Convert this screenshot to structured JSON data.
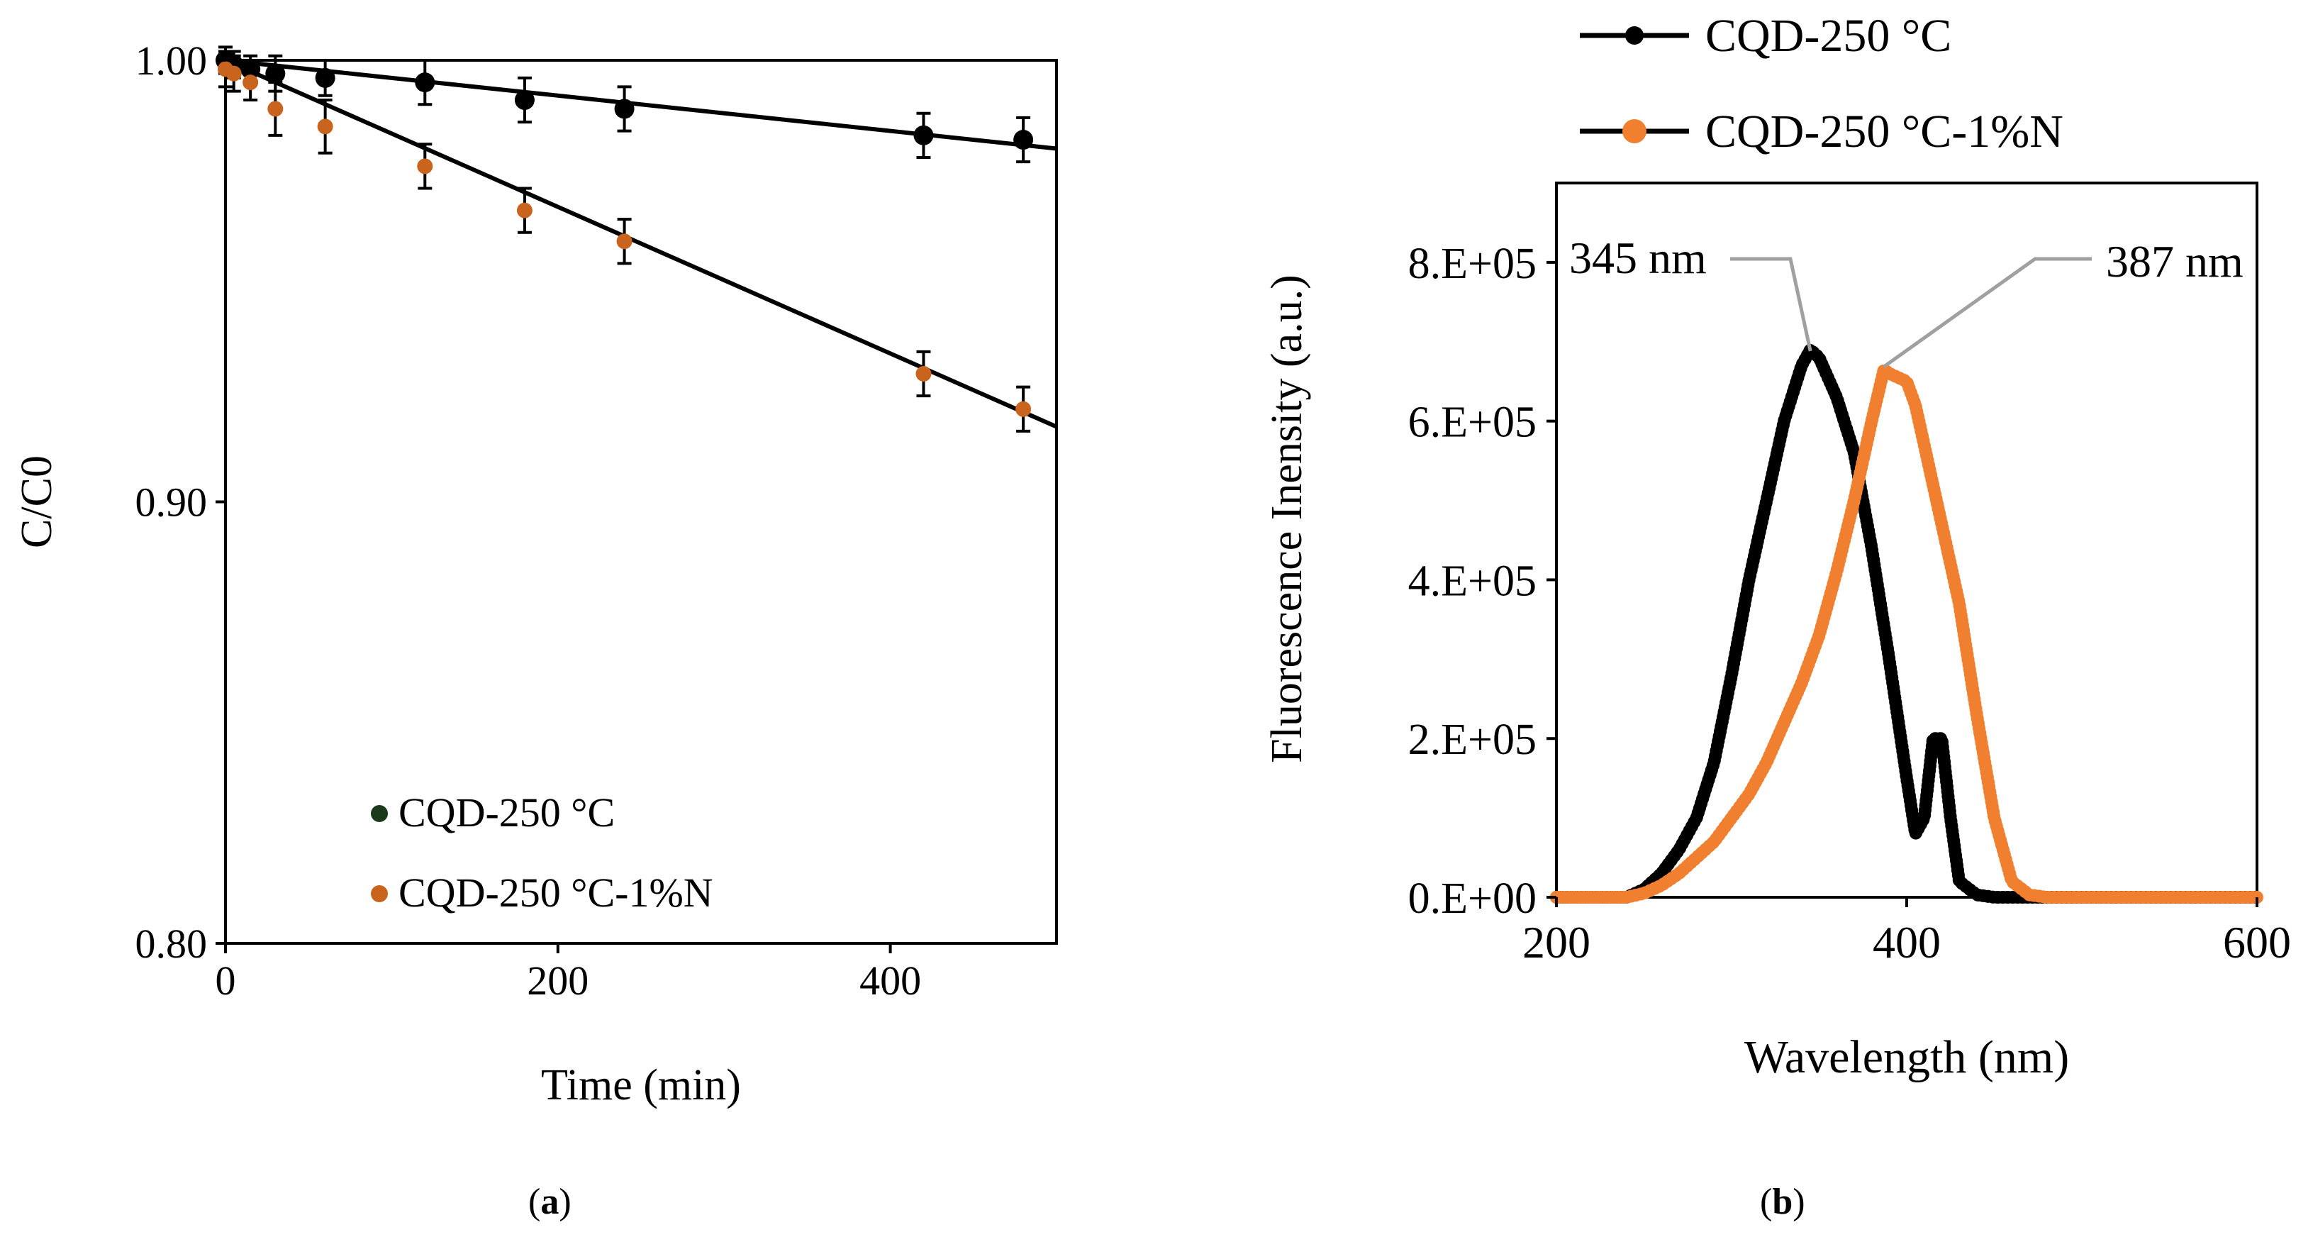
{
  "chart_data": [
    {
      "type": "scatter",
      "panel_label": "a",
      "title": "",
      "xlabel": "Time (min)",
      "ylabel": "C/C0",
      "xlim": [
        0,
        500
      ],
      "ylim": [
        0.8,
        1.0
      ],
      "xticks": [
        0,
        200,
        400
      ],
      "yticks": [
        0.8,
        0.9,
        1.0
      ],
      "ytick_labels": [
        "0.80",
        "0.90",
        "1.00"
      ],
      "legend_position": "bottom-left",
      "series": [
        {
          "name": "CQD-250 °C",
          "color": "#000000",
          "legend_marker_color": "#1a3a1a",
          "x": [
            0,
            5,
            15,
            30,
            60,
            120,
            180,
            240,
            420,
            480
          ],
          "y": [
            1.0,
            0.999,
            0.998,
            0.997,
            0.996,
            0.995,
            0.991,
            0.989,
            0.983,
            0.982
          ],
          "error": [
            0.003,
            0.003,
            0.003,
            0.004,
            0.004,
            0.005,
            0.005,
            0.005,
            0.005,
            0.005
          ],
          "trendline": {
            "x": [
              0,
              500
            ],
            "y": [
              1.0,
              0.98
            ]
          }
        },
        {
          "name": "CQD-250 °C-1%N",
          "color": "#c8641e",
          "legend_marker_color": "#c8641e",
          "x": [
            0,
            5,
            15,
            30,
            60,
            120,
            180,
            240,
            420,
            480
          ],
          "y": [
            0.998,
            0.997,
            0.995,
            0.989,
            0.985,
            0.976,
            0.966,
            0.959,
            0.929,
            0.921
          ],
          "error": [
            0.004,
            0.004,
            0.004,
            0.006,
            0.006,
            0.005,
            0.005,
            0.005,
            0.005,
            0.005
          ],
          "trendline": {
            "x": [
              0,
              500
            ],
            "y": [
              1.0,
              0.917
            ]
          }
        }
      ]
    },
    {
      "type": "line",
      "panel_label": "b",
      "title": "",
      "xlabel": "Wavelength (nm)",
      "ylabel": "Fluorescence Inensity (a.u.)",
      "xlim": [
        200,
        600
      ],
      "ylim": [
        0,
        900000
      ],
      "xticks": [
        200,
        400,
        600
      ],
      "yticks": [
        0,
        200000,
        400000,
        600000,
        800000
      ],
      "ytick_labels": [
        "0.E+00",
        "2.E+05",
        "4.E+05",
        "6.E+05",
        "8.E+05"
      ],
      "legend_position": "top (above plot)",
      "annotations": [
        {
          "text": "345 nm",
          "x": 345,
          "y": 690000
        },
        {
          "text": "387 nm",
          "x": 387,
          "y": 665000
        }
      ],
      "series": [
        {
          "name": "CQD-250 °C",
          "color": "#000000",
          "x": [
            200,
            240,
            250,
            260,
            270,
            280,
            290,
            300,
            310,
            320,
            330,
            340,
            345,
            350,
            360,
            370,
            380,
            390,
            400,
            405,
            410,
            415,
            420,
            425,
            430,
            440,
            450,
            500,
            600
          ],
          "y": [
            0,
            0,
            10000,
            30000,
            60000,
            100000,
            170000,
            280000,
            400000,
            500000,
            600000,
            670000,
            690000,
            680000,
            630000,
            560000,
            440000,
            300000,
            150000,
            80000,
            100000,
            200000,
            200000,
            100000,
            20000,
            3000,
            0,
            0,
            0
          ]
        },
        {
          "name": "CQD-250 °C-1%N",
          "color": "#f07f2f",
          "x": [
            200,
            240,
            250,
            260,
            270,
            280,
            290,
            300,
            310,
            320,
            330,
            340,
            350,
            360,
            370,
            380,
            387,
            390,
            395,
            400,
            405,
            410,
            420,
            430,
            440,
            450,
            460,
            470,
            480,
            500,
            600
          ],
          "y": [
            0,
            0,
            5000,
            15000,
            30000,
            50000,
            70000,
            100000,
            130000,
            170000,
            220000,
            270000,
            330000,
            410000,
            500000,
            600000,
            665000,
            660000,
            655000,
            650000,
            620000,
            570000,
            470000,
            370000,
            230000,
            100000,
            20000,
            3000,
            0,
            0,
            0
          ]
        }
      ]
    }
  ]
}
